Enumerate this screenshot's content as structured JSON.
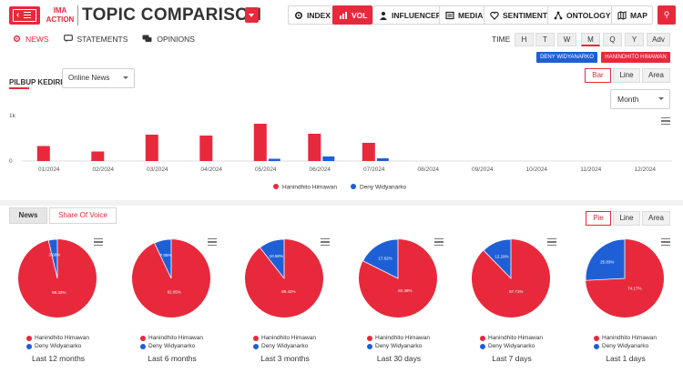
{
  "app": {
    "brand_line1": "IMA",
    "brand_line2": "ACTION",
    "title": "TOPIC COMPARISON"
  },
  "nav": [
    {
      "label": "INDEX",
      "icon": "gear-icon",
      "active": false
    },
    {
      "label": "VOL",
      "icon": "bar-chart-icon",
      "active": true
    },
    {
      "label": "INFLUENCER",
      "icon": "person-icon",
      "active": false
    },
    {
      "label": "MEDIA",
      "icon": "newspaper-icon",
      "active": false
    },
    {
      "label": "SENTIMENT",
      "icon": "heart-icon",
      "active": false
    },
    {
      "label": "ONTOLOGY",
      "icon": "network-icon",
      "active": false
    },
    {
      "label": "MAP",
      "icon": "map-icon",
      "active": false
    }
  ],
  "tabs": [
    {
      "label": "NEWS",
      "icon": "gear-icon",
      "active": true
    },
    {
      "label": "STATEMENTS",
      "icon": "comment-icon",
      "active": false
    },
    {
      "label": "OPINIONS",
      "icon": "comments-icon",
      "active": false
    }
  ],
  "time": {
    "label": "TIME",
    "options": [
      "H",
      "T",
      "W",
      "M",
      "Q",
      "Y",
      "Adv"
    ],
    "selected": "M"
  },
  "legend_buttons": {
    "deny": "DENY WIDYANARKO",
    "hanin": "HANINDHITO HIMAWAN"
  },
  "subtitle": "PILBUP KEDIRI",
  "source_select": "Online News",
  "chart_types_top": [
    "Bar",
    "Line",
    "Area"
  ],
  "chart_type_top_selected": "Bar",
  "period_select": "Month",
  "colors": {
    "accent": "#e8293c",
    "hanin": "#e8293c",
    "deny": "#1f5fd6"
  },
  "chart_data": {
    "type": "bar",
    "categories": [
      "01/2024",
      "02/2024",
      "03/2024",
      "04/2024",
      "05/2024",
      "06/2024",
      "07/2024",
      "08/2024",
      "09/2024",
      "10/2024",
      "11/2024",
      "12/2024"
    ],
    "series": [
      {
        "name": "Hanindhito Himawan",
        "values": [
          330,
          210,
          580,
          560,
          820,
          600,
          400,
          0,
          0,
          0,
          0,
          0
        ]
      },
      {
        "name": "Deny Widyanarko",
        "values": [
          0,
          0,
          0,
          0,
          50,
          100,
          60,
          0,
          0,
          0,
          0,
          0
        ]
      }
    ],
    "ytick_labels": [
      "0",
      "1k"
    ],
    "ylim": [
      0,
      1000
    ],
    "title": "",
    "xlabel": "",
    "ylabel": ""
  },
  "lower_tabs": {
    "news": "News",
    "share_of_voice": "Share Of Voice"
  },
  "chart_types_bottom": [
    "Pie",
    "Line",
    "Area"
  ],
  "chart_type_bottom_selected": "Pie",
  "pies": [
    {
      "period": "Last 12 months",
      "hanin_label": "96.32%",
      "deny_label": "3.68%",
      "hanin": 96.32,
      "deny": 3.68
    },
    {
      "period": "Last 6 months",
      "hanin_label": "92.95%",
      "deny_label": "7.05%",
      "hanin": 92.95,
      "deny": 7.05
    },
    {
      "period": "Last 3 months",
      "hanin_label": "89.42%",
      "deny_label": "10.58%",
      "hanin": 89.42,
      "deny": 10.58
    },
    {
      "period": "Last 30 days",
      "hanin_label": "82.38%",
      "deny_label": "17.62%",
      "hanin": 82.38,
      "deny": 17.62
    },
    {
      "period": "Last 7 days",
      "hanin_label": "87.71%",
      "deny_label": "12.29%",
      "hanin": 87.71,
      "deny": 12.29
    },
    {
      "period": "Last 1 days",
      "hanin_label": "74.17%",
      "deny_label": "25.83%",
      "hanin": 74.17,
      "deny": 25.83
    }
  ],
  "pie_legend": {
    "hanin": "Hanindhito Himawan",
    "deny": "Deny Widyanarko"
  }
}
